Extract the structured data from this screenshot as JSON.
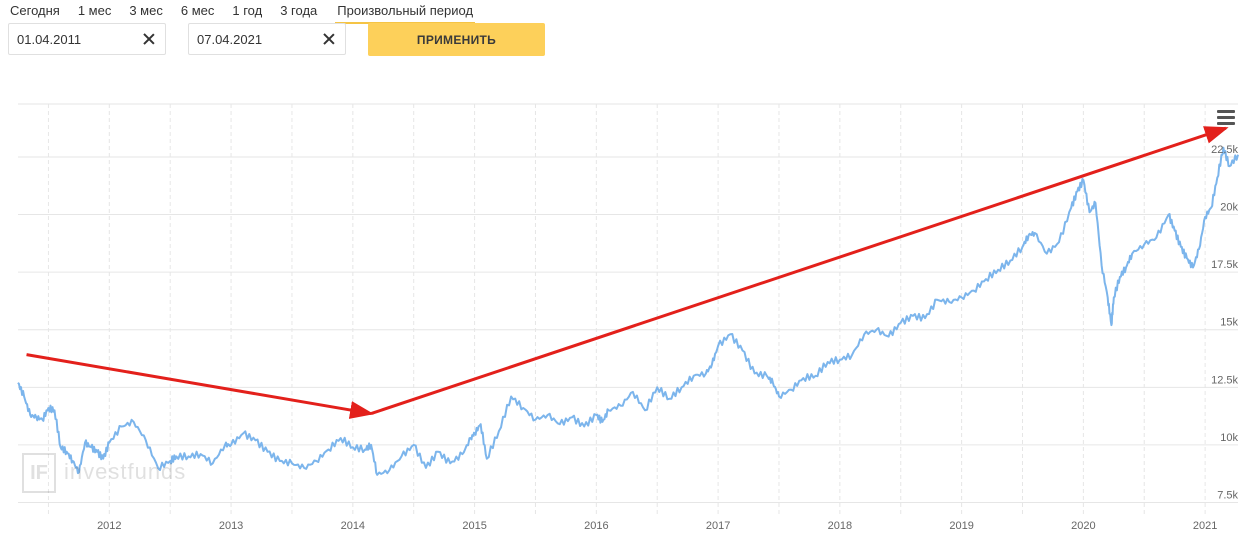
{
  "period_tabs": {
    "today": "Сегодня",
    "m1": "1 мес",
    "m3": "3 мес",
    "m6": "6 мес",
    "y1": "1 год",
    "y3": "3 года",
    "custom": "Произвольный период"
  },
  "date_from": {
    "value": "01.04.2011"
  },
  "date_to": {
    "value": "07.04.2021"
  },
  "apply_label": "ПРИМЕНИТЬ",
  "watermark": {
    "logo_text": "IF",
    "text": "investfunds"
  },
  "colors": {
    "line": "#7cb5ec",
    "arrow": "#e3201b",
    "button": "#fdd05a",
    "tab_underline": "#f5c445"
  },
  "chart_data": {
    "type": "line",
    "title": "",
    "xlabel": "",
    "ylabel": "",
    "x_ticks": [
      "2012",
      "2013",
      "2014",
      "2015",
      "2016",
      "2017",
      "2018",
      "2019",
      "2020",
      "2021"
    ],
    "x_range": [
      2011.25,
      2021.27
    ],
    "y_ticks": [
      7500,
      10000,
      12500,
      15000,
      17500,
      20000,
      22500
    ],
    "y_tick_labels": [
      "7.5k",
      "10k",
      "12.5k",
      "15k",
      "17.5k",
      "20k",
      "22.5k"
    ],
    "ylim": [
      7000,
      24800
    ],
    "grid": true,
    "series": [
      {
        "x": [
          2011.25,
          2011.3,
          2011.35,
          2011.4,
          2011.45,
          2011.5,
          2011.55,
          2011.6,
          2011.65,
          2011.7,
          2011.75,
          2011.8,
          2011.85,
          2011.9,
          2011.95,
          2012.0,
          2012.1,
          2012.2,
          2012.3,
          2012.4,
          2012.5,
          2012.55,
          2012.65,
          2012.75,
          2012.85,
          2012.95,
          2013.0,
          2013.1,
          2013.2,
          2013.3,
          2013.4,
          2013.5,
          2013.6,
          2013.7,
          2013.8,
          2013.9,
          2014.0,
          2014.1,
          2014.15,
          2014.2,
          2014.3,
          2014.4,
          2014.5,
          2014.6,
          2014.7,
          2014.8,
          2014.9,
          2014.97,
          2015.0,
          2015.05,
          2015.1,
          2015.2,
          2015.3,
          2015.4,
          2015.5,
          2015.6,
          2015.7,
          2015.8,
          2015.9,
          2016.0,
          2016.05,
          2016.1,
          2016.2,
          2016.3,
          2016.4,
          2016.5,
          2016.6,
          2016.7,
          2016.8,
          2016.9,
          2016.95,
          2017.0,
          2017.1,
          2017.2,
          2017.3,
          2017.4,
          2017.45,
          2017.5,
          2017.6,
          2017.7,
          2017.8,
          2017.9,
          2018.0,
          2018.1,
          2018.2,
          2018.3,
          2018.4,
          2018.5,
          2018.6,
          2018.7,
          2018.8,
          2018.9,
          2019.0,
          2019.1,
          2019.2,
          2019.3,
          2019.4,
          2019.5,
          2019.55,
          2019.6,
          2019.7,
          2019.8,
          2019.9,
          2019.95,
          2020.0,
          2020.05,
          2020.1,
          2020.15,
          2020.2,
          2020.23,
          2020.25,
          2020.3,
          2020.35,
          2020.4,
          2020.5,
          2020.6,
          2020.7,
          2020.75,
          2020.8,
          2020.85,
          2020.9,
          2020.95,
          2021.0,
          2021.05,
          2021.1,
          2021.15,
          2021.2,
          2021.27
        ],
        "y": [
          12700,
          12100,
          11300,
          11200,
          11100,
          11600,
          11500,
          9900,
          9700,
          9300,
          8800,
          10100,
          9900,
          9700,
          9400,
          10100,
          10800,
          11000,
          10200,
          9000,
          9300,
          9500,
          9500,
          9600,
          9200,
          10000,
          10000,
          10500,
          10200,
          9700,
          9300,
          9200,
          9000,
          9300,
          9800,
          10300,
          9900,
          9800,
          10000,
          8700,
          8900,
          9500,
          10000,
          9000,
          9700,
          9200,
          9600,
          10300,
          10500,
          10900,
          9400,
          10600,
          12100,
          11600,
          11100,
          11300,
          10900,
          11200,
          10800,
          11300,
          11000,
          11500,
          11700,
          12300,
          11500,
          12500,
          12000,
          12500,
          13000,
          13100,
          13500,
          14300,
          14800,
          14100,
          13100,
          13000,
          12700,
          12100,
          12400,
          12900,
          13000,
          13600,
          13700,
          13900,
          14800,
          15000,
          14700,
          15300,
          15600,
          15500,
          16300,
          16200,
          16400,
          16700,
          17200,
          17600,
          18000,
          18600,
          19100,
          19200,
          18300,
          18800,
          20300,
          21000,
          21500,
          20100,
          20500,
          17800,
          16400,
          15200,
          16400,
          17300,
          17700,
          18300,
          18700,
          19000,
          20000,
          19300,
          18600,
          18100,
          17700,
          18500,
          19900,
          20300,
          21600,
          22900,
          22100,
          22600
        ]
      }
    ],
    "annotations": [
      {
        "type": "arrow",
        "from": [
          2011.32,
          13920
        ],
        "to": [
          2014.15,
          11360
        ]
      },
      {
        "type": "arrow",
        "from": [
          2014.15,
          11360
        ],
        "to": [
          2021.17,
          23750
        ]
      }
    ]
  }
}
